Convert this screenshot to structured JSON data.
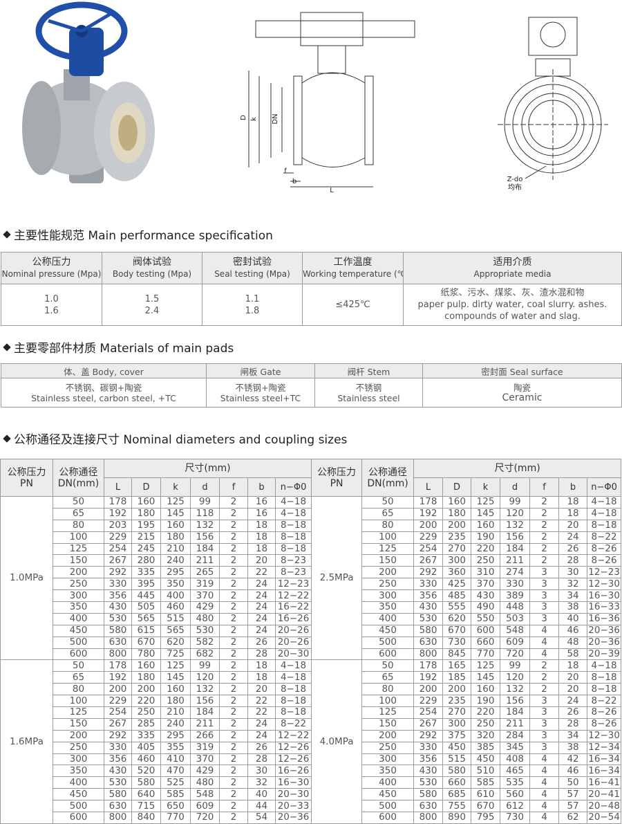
{
  "figures": {
    "side_view": [
      "D",
      "k",
      "DN",
      "f",
      "b",
      "L"
    ],
    "front_view": [
      "Z-do",
      "均布"
    ]
  },
  "performance": {
    "title": "主要性能规范 Main performance specification",
    "headers": [
      [
        "公称压力",
        "Nominal pressure (Mpa)"
      ],
      [
        "阀体试验",
        "Body testing (Mpa)"
      ],
      [
        "密封试验",
        "Seal testing (Mpa)"
      ],
      [
        "工作温度",
        "Working temperature (℃)"
      ],
      [
        "适用介质",
        "Appropriate media"
      ]
    ],
    "row": [
      [
        "1.0",
        "1.6"
      ],
      [
        "1.5",
        "2.4"
      ],
      [
        "1.1",
        "1.8"
      ],
      [
        "≤425℃"
      ],
      [
        "纸浆、污水、煤浆、灰、渣水混和物",
        "paper pulp. dirty water, coal slurry. ashes.",
        "compounds of water and slag."
      ]
    ]
  },
  "materials": {
    "title": "主要零部件材质 Materials of main pads",
    "headers": [
      "体、盖 Body, cover",
      "闸板 Gate",
      "阀杆 Stem",
      "密封面 Seal surface"
    ],
    "row": [
      [
        "不锈钢、碳钢+陶瓷",
        "Stainless steel, carbon steel, +TC"
      ],
      [
        "不锈钢+陶瓷",
        "Stainless steel+TC"
      ],
      [
        "不锈钢",
        "Stainless steel"
      ],
      [
        "陶瓷",
        "Ceramic"
      ]
    ]
  },
  "sizes": {
    "title": "公称通径及连接尺寸 Nominal diameters and coupling sizes",
    "pn_header": [
      "公称压力",
      "PN"
    ],
    "dn_header": [
      "公称通径",
      "DN(mm)"
    ],
    "dim_header": "尺寸(mm)",
    "columns": [
      "L",
      "D",
      "k",
      "d",
      "f",
      "b",
      "n−Φ0"
    ],
    "left": [
      {
        "pn": "1.0MPa",
        "rows": [
          [
            50,
            178,
            160,
            125,
            99,
            2,
            16,
            "4−18"
          ],
          [
            65,
            192,
            180,
            145,
            118,
            2,
            16,
            "4−18"
          ],
          [
            80,
            203,
            195,
            160,
            132,
            2,
            18,
            "8−18"
          ],
          [
            100,
            229,
            215,
            180,
            156,
            2,
            18,
            "8−18"
          ],
          [
            125,
            254,
            245,
            210,
            184,
            2,
            18,
            "8−18"
          ],
          [
            150,
            267,
            280,
            240,
            211,
            2,
            20,
            "8−23"
          ],
          [
            200,
            292,
            335,
            295,
            265,
            2,
            22,
            "8−23"
          ],
          [
            250,
            330,
            395,
            350,
            319,
            2,
            24,
            "12−23"
          ],
          [
            300,
            356,
            445,
            400,
            370,
            2,
            24,
            "12−22"
          ],
          [
            350,
            430,
            505,
            460,
            429,
            2,
            24,
            "16−22"
          ],
          [
            400,
            530,
            565,
            515,
            480,
            2,
            24,
            "16−26"
          ],
          [
            450,
            580,
            615,
            565,
            530,
            2,
            24,
            "20−26"
          ],
          [
            500,
            630,
            670,
            620,
            582,
            2,
            26,
            "20−26"
          ],
          [
            600,
            800,
            780,
            725,
            682,
            2,
            28,
            "20−30"
          ]
        ]
      },
      {
        "pn": "1.6MPa",
        "rows": [
          [
            50,
            178,
            160,
            125,
            99,
            2,
            18,
            "4−18"
          ],
          [
            65,
            192,
            180,
            145,
            120,
            2,
            18,
            "4−18"
          ],
          [
            80,
            200,
            200,
            160,
            132,
            2,
            20,
            "8−18"
          ],
          [
            100,
            229,
            220,
            180,
            156,
            2,
            22,
            "8−18"
          ],
          [
            125,
            254,
            250,
            210,
            184,
            2,
            22,
            "8−18"
          ],
          [
            150,
            267,
            285,
            240,
            211,
            2,
            24,
            "8−22"
          ],
          [
            200,
            292,
            335,
            295,
            266,
            2,
            24,
            "12−22"
          ],
          [
            250,
            330,
            405,
            355,
            319,
            2,
            26,
            "12−26"
          ],
          [
            300,
            356,
            460,
            410,
            370,
            2,
            28,
            "12−26"
          ],
          [
            350,
            430,
            520,
            470,
            429,
            2,
            30,
            "16−26"
          ],
          [
            400,
            530,
            580,
            525,
            480,
            2,
            32,
            "16−30"
          ],
          [
            450,
            580,
            640,
            585,
            548,
            2,
            40,
            "20−30"
          ],
          [
            500,
            630,
            715,
            650,
            609,
            2,
            44,
            "20−33"
          ],
          [
            600,
            800,
            840,
            770,
            720,
            2,
            54,
            "20−36"
          ]
        ]
      }
    ],
    "right": [
      {
        "pn": "2.5MPa",
        "rows": [
          [
            50,
            178,
            160,
            125,
            99,
            2,
            18,
            "4−18"
          ],
          [
            65,
            192,
            180,
            145,
            120,
            2,
            18,
            "4−18"
          ],
          [
            80,
            200,
            200,
            160,
            132,
            2,
            20,
            "8−18"
          ],
          [
            100,
            229,
            235,
            190,
            156,
            2,
            24,
            "8−22"
          ],
          [
            125,
            254,
            270,
            220,
            184,
            2,
            26,
            "8−26"
          ],
          [
            150,
            267,
            300,
            250,
            211,
            2,
            28,
            "8−26"
          ],
          [
            200,
            292,
            360,
            310,
            274,
            3,
            30,
            "12−23"
          ],
          [
            250,
            330,
            425,
            370,
            330,
            3,
            32,
            "12−30"
          ],
          [
            300,
            356,
            485,
            430,
            389,
            3,
            34,
            "16−30"
          ],
          [
            350,
            430,
            555,
            490,
            448,
            3,
            38,
            "16−33"
          ],
          [
            400,
            530,
            620,
            550,
            503,
            3,
            40,
            "16−36"
          ],
          [
            450,
            580,
            670,
            600,
            548,
            4,
            46,
            "20−36"
          ],
          [
            500,
            630,
            730,
            660,
            609,
            4,
            48,
            "20−36"
          ],
          [
            600,
            800,
            845,
            770,
            720,
            4,
            58,
            "20−39"
          ]
        ]
      },
      {
        "pn": "4.0MPa",
        "rows": [
          [
            50,
            178,
            165,
            125,
            99,
            2,
            18,
            "4−18"
          ],
          [
            65,
            192,
            185,
            145,
            120,
            2,
            20,
            "8−18"
          ],
          [
            80,
            200,
            200,
            160,
            132,
            2,
            20,
            "8−18"
          ],
          [
            100,
            229,
            235,
            190,
            156,
            3,
            24,
            "8−22"
          ],
          [
            125,
            254,
            270,
            220,
            184,
            3,
            26,
            "8−26"
          ],
          [
            150,
            267,
            300,
            250,
            211,
            3,
            28,
            "8−26"
          ],
          [
            200,
            292,
            375,
            320,
            284,
            3,
            34,
            "12−30"
          ],
          [
            250,
            330,
            450,
            385,
            345,
            3,
            38,
            "12−34"
          ],
          [
            300,
            356,
            515,
            450,
            408,
            4,
            42,
            "16−34"
          ],
          [
            350,
            430,
            580,
            510,
            465,
            4,
            46,
            "16−34"
          ],
          [
            400,
            530,
            660,
            585,
            535,
            4,
            50,
            "16−41"
          ],
          [
            450,
            580,
            685,
            610,
            560,
            4,
            57,
            "20−41"
          ],
          [
            500,
            630,
            755,
            670,
            612,
            4,
            57,
            "20−48"
          ],
          [
            600,
            800,
            890,
            795,
            730,
            4,
            62,
            "20−54"
          ]
        ]
      }
    ]
  }
}
